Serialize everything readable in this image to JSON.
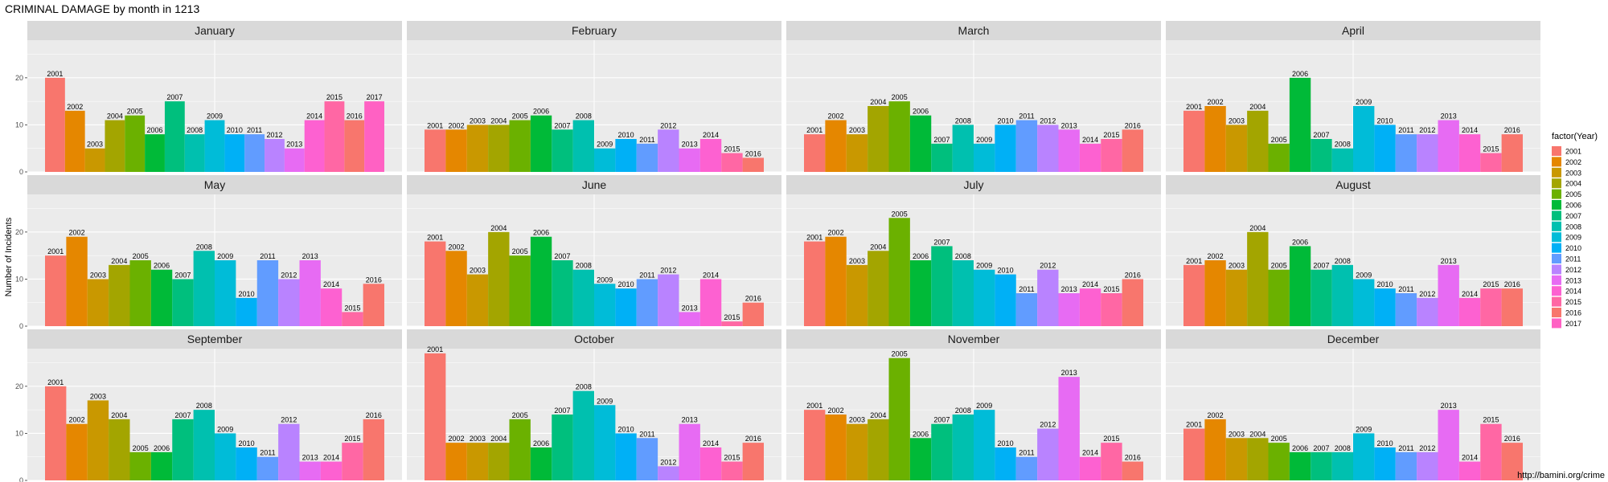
{
  "chart_data": {
    "type": "bar",
    "title": "CRIMINAL DAMAGE by month in 1213",
    "ylabel": "Number of Incidents",
    "xlabel": "",
    "ylim": [
      0,
      28
    ],
    "yticks": [
      0,
      10,
      20
    ],
    "grid": true,
    "legend": {
      "title": "factor(Year)",
      "position": "right",
      "entries": [
        "2001",
        "2002",
        "2003",
        "2004",
        "2005",
        "2006",
        "2007",
        "2008",
        "2009",
        "2010",
        "2011",
        "2012",
        "2013",
        "2014",
        "2015",
        "2016",
        "2017"
      ]
    },
    "colors": {
      "2001": "#F8766D",
      "2002": "#E58700",
      "2003": "#C99800",
      "2004": "#A3A500",
      "2005": "#6BB100",
      "2006": "#00BA38",
      "2007": "#00BF7D",
      "2008": "#00C0AF",
      "2009": "#00BCD8",
      "2010": "#00B0F6",
      "2011": "#619CFF",
      "2012": "#B983FF",
      "2013": "#E76BF3",
      "2014": "#FD61D1",
      "2015": "#FF67A4",
      "2016": "#F8766D",
      "2017": "#FF61C3"
    },
    "facets": [
      {
        "month": "January",
        "years": [
          "2001",
          "2002",
          "2003",
          "2004",
          "2005",
          "2006",
          "2007",
          "2008",
          "2009",
          "2010",
          "2011",
          "2012",
          "2013",
          "2014",
          "2015",
          "2016",
          "2017"
        ],
        "values": [
          20,
          13,
          5,
          11,
          12,
          8,
          15,
          8,
          11,
          8,
          8,
          7,
          5,
          11,
          15,
          11,
          15
        ]
      },
      {
        "month": "February",
        "years": [
          "2001",
          "2002",
          "2003",
          "2004",
          "2005",
          "2006",
          "2007",
          "2008",
          "2009",
          "2010",
          "2011",
          "2012",
          "2013",
          "2014",
          "2015",
          "2016"
        ],
        "values": [
          9,
          9,
          10,
          10,
          11,
          12,
          9,
          11,
          5,
          7,
          6,
          9,
          5,
          7,
          4,
          3
        ]
      },
      {
        "month": "March",
        "years": [
          "2001",
          "2002",
          "2003",
          "2004",
          "2005",
          "2006",
          "2007",
          "2008",
          "2009",
          "2010",
          "2011",
          "2012",
          "2013",
          "2014",
          "2015",
          "2016"
        ],
        "values": [
          8,
          11,
          8,
          14,
          15,
          12,
          6,
          10,
          6,
          10,
          11,
          10,
          9,
          6,
          7,
          9
        ]
      },
      {
        "month": "April",
        "years": [
          "2001",
          "2002",
          "2003",
          "2004",
          "2005",
          "2006",
          "2007",
          "2008",
          "2009",
          "2010",
          "2011",
          "2012",
          "2013",
          "2014",
          "2015",
          "2016"
        ],
        "values": [
          13,
          14,
          10,
          13,
          6,
          20,
          7,
          5,
          14,
          10,
          8,
          8,
          11,
          8,
          4,
          8
        ]
      },
      {
        "month": "May",
        "years": [
          "2001",
          "2002",
          "2003",
          "2004",
          "2005",
          "2006",
          "2007",
          "2008",
          "2009",
          "2010",
          "2011",
          "2012",
          "2013",
          "2014",
          "2015",
          "2016"
        ],
        "values": [
          15,
          19,
          10,
          13,
          14,
          12,
          10,
          16,
          14,
          6,
          14,
          10,
          14,
          8,
          3,
          9
        ]
      },
      {
        "month": "June",
        "years": [
          "2001",
          "2002",
          "2003",
          "2004",
          "2005",
          "2006",
          "2007",
          "2008",
          "2009",
          "2010",
          "2011",
          "2012",
          "2013",
          "2014",
          "2015",
          "2016"
        ],
        "values": [
          18,
          16,
          11,
          20,
          15,
          19,
          14,
          12,
          9,
          8,
          10,
          11,
          3,
          10,
          1,
          5
        ]
      },
      {
        "month": "July",
        "years": [
          "2001",
          "2002",
          "2003",
          "2004",
          "2005",
          "2006",
          "2007",
          "2008",
          "2009",
          "2010",
          "2011",
          "2012",
          "2013",
          "2014",
          "2015",
          "2016"
        ],
        "values": [
          18,
          19,
          13,
          16,
          23,
          14,
          17,
          14,
          12,
          11,
          7,
          12,
          7,
          8,
          7,
          10
        ]
      },
      {
        "month": "August",
        "years": [
          "2001",
          "2002",
          "2003",
          "2004",
          "2005",
          "2006",
          "2007",
          "2008",
          "2009",
          "2010",
          "2011",
          "2012",
          "2013",
          "2014",
          "2015",
          "2016"
        ],
        "values": [
          13,
          14,
          12,
          20,
          12,
          17,
          12,
          13,
          10,
          8,
          7,
          6,
          13,
          6,
          8,
          8
        ]
      },
      {
        "month": "September",
        "years": [
          "2001",
          "2002",
          "2003",
          "2004",
          "2005",
          "2006",
          "2007",
          "2008",
          "2009",
          "2010",
          "2011",
          "2012",
          "2013",
          "2014",
          "2015",
          "2016"
        ],
        "values": [
          20,
          12,
          17,
          13,
          6,
          6,
          13,
          15,
          10,
          7,
          5,
          12,
          4,
          4,
          8,
          13
        ]
      },
      {
        "month": "October",
        "years": [
          "2001",
          "2002",
          "2003",
          "2004",
          "2005",
          "2006",
          "2007",
          "2008",
          "2009",
          "2010",
          "2011",
          "2012",
          "2013",
          "2014",
          "2015",
          "2016"
        ],
        "values": [
          27,
          8,
          8,
          8,
          13,
          7,
          14,
          19,
          16,
          10,
          9,
          3,
          12,
          7,
          4,
          8
        ]
      },
      {
        "month": "November",
        "years": [
          "2001",
          "2002",
          "2003",
          "2004",
          "2005",
          "2006",
          "2007",
          "2008",
          "2009",
          "2010",
          "2011",
          "2012",
          "2013",
          "2014",
          "2015",
          "2016"
        ],
        "values": [
          15,
          14,
          12,
          13,
          26,
          9,
          12,
          14,
          15,
          7,
          5,
          11,
          22,
          5,
          8,
          4
        ]
      },
      {
        "month": "December",
        "years": [
          "2001",
          "2002",
          "2003",
          "2004",
          "2005",
          "2006",
          "2007",
          "2008",
          "2009",
          "2010",
          "2011",
          "2012",
          "2013",
          "2014",
          "2015",
          "2016"
        ],
        "values": [
          11,
          13,
          9,
          9,
          8,
          6,
          6,
          6,
          10,
          7,
          6,
          6,
          15,
          4,
          12,
          8
        ]
      }
    ],
    "caption": "http://bamini.org/crime"
  }
}
